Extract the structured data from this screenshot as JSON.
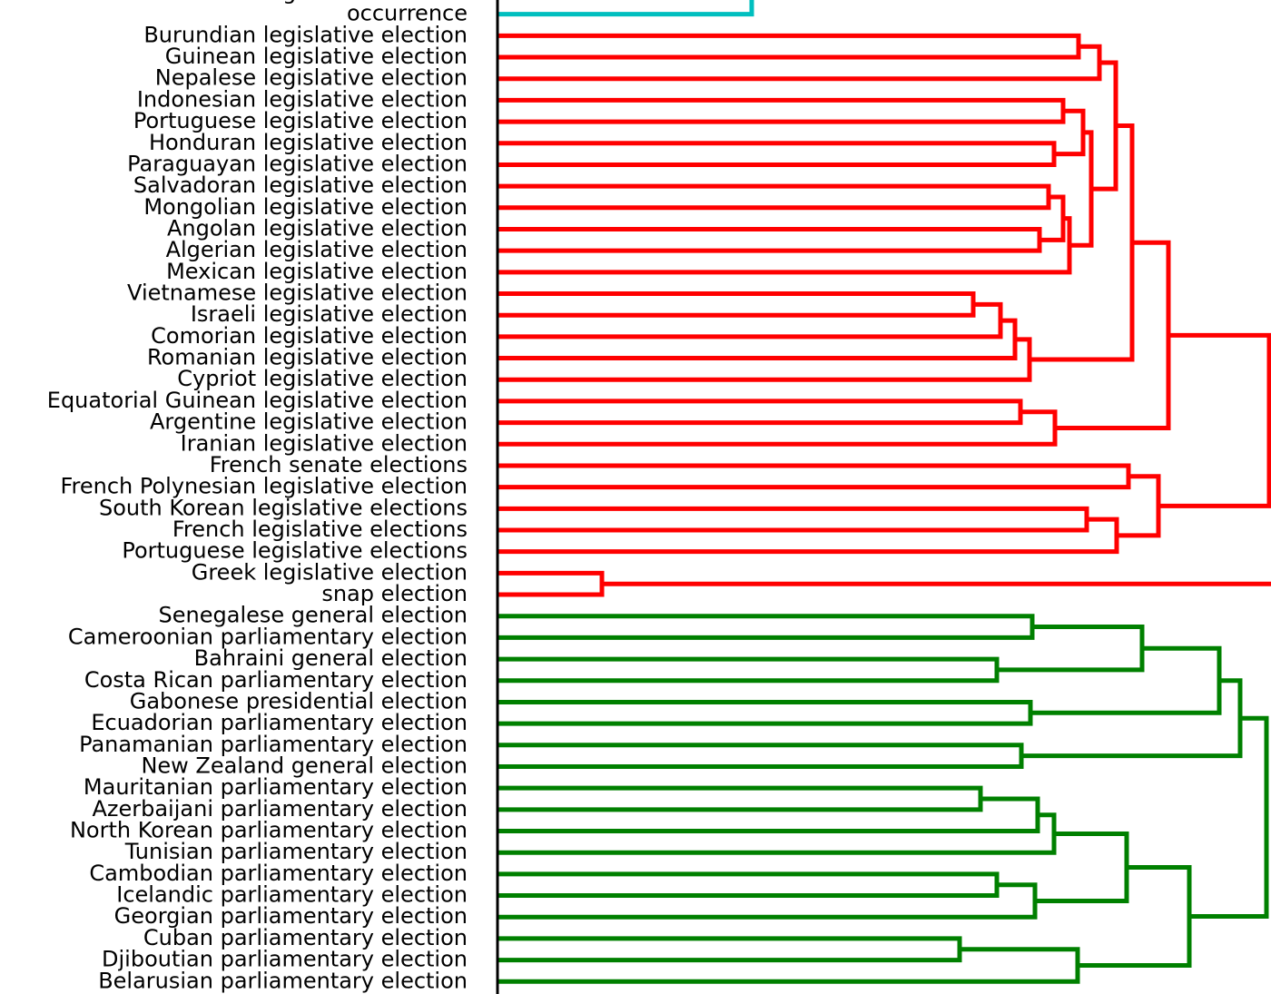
{
  "chart_data": {
    "type": "dendrogram",
    "leaves": [
      "legislative election",
      "occurrence",
      "Burundian legislative election",
      "Guinean legislative election",
      "Nepalese legislative election",
      "Indonesian legislative election",
      "Portuguese legislative election",
      "Honduran legislative election",
      "Paraguayan legislative election",
      "Salvadoran legislative election",
      "Mongolian legislative election",
      "Angolan legislative election",
      "Algerian legislative election",
      "Mexican legislative election",
      "Vietnamese legislative election",
      "Israeli legislative election",
      "Comorian legislative election",
      "Romanian legislative election",
      "Cypriot legislative election",
      "Equatorial Guinean legislative election",
      "Argentine legislative election",
      "Iranian legislative election",
      "French senate elections",
      "French Polynesian legislative election",
      "South Korean legislative elections",
      "French legislative elections",
      "Portuguese legislative elections",
      "Greek legislative election",
      "snap election",
      "Senegalese general election",
      "Cameroonian parliamentary election",
      "Bahraini general election",
      "Costa Rican parliamentary election",
      "Gabonese presidential election",
      "Ecuadorian parliamentary election",
      "Panamanian parliamentary election",
      "New Zealand general election",
      "Mauritanian parliamentary election",
      "Azerbaijani parliamentary election",
      "North Korean parliamentary election",
      "Tunisian parliamentary election",
      "Cambodian parliamentary election",
      "Icelandic parliamentary election",
      "Georgian parliamentary election",
      "Cuban parliamentary election",
      "Djiboutian parliamentary election",
      "Belarusian parliamentary election"
    ],
    "links": [
      {
        "children": [
          0,
          1
        ],
        "height": 2.8,
        "color": "#00bfbf"
      },
      {
        "children": [
          2,
          3
        ],
        "height": 6.4,
        "color": "#ff0000"
      },
      {
        "children": [
          48,
          4
        ],
        "height": 6.63,
        "color": "#ff0000"
      },
      {
        "children": [
          5,
          6
        ],
        "height": 6.23,
        "color": "#ff0000"
      },
      {
        "children": [
          7,
          8
        ],
        "height": 6.13,
        "color": "#ff0000"
      },
      {
        "children": [
          50,
          51
        ],
        "height": 6.45,
        "color": "#ff0000"
      },
      {
        "children": [
          9,
          10
        ],
        "height": 6.07,
        "color": "#ff0000"
      },
      {
        "children": [
          11,
          12
        ],
        "height": 5.97,
        "color": "#ff0000"
      },
      {
        "children": [
          53,
          54
        ],
        "height": 6.23,
        "color": "#ff0000"
      },
      {
        "children": [
          55,
          13
        ],
        "height": 6.3,
        "color": "#ff0000"
      },
      {
        "children": [
          52,
          56
        ],
        "height": 6.54,
        "color": "#ff0000"
      },
      {
        "children": [
          49,
          57
        ],
        "height": 6.81,
        "color": "#ff0000"
      },
      {
        "children": [
          14,
          15
        ],
        "height": 5.24,
        "color": "#ff0000"
      },
      {
        "children": [
          59,
          16
        ],
        "height": 5.54,
        "color": "#ff0000"
      },
      {
        "children": [
          60,
          17
        ],
        "height": 5.7,
        "color": "#ff0000"
      },
      {
        "children": [
          61,
          18
        ],
        "height": 5.86,
        "color": "#ff0000"
      },
      {
        "children": [
          58,
          62
        ],
        "height": 6.99,
        "color": "#ff0000"
      },
      {
        "children": [
          19,
          20
        ],
        "height": 5.76,
        "color": "#ff0000"
      },
      {
        "children": [
          64,
          21
        ],
        "height": 6.14,
        "color": "#ff0000"
      },
      {
        "children": [
          63,
          65
        ],
        "height": 7.39,
        "color": "#ff0000"
      },
      {
        "children": [
          24,
          25
        ],
        "height": 6.49,
        "color": "#ff0000"
      },
      {
        "children": [
          67,
          26
        ],
        "height": 6.82,
        "color": "#ff0000"
      },
      {
        "children": [
          22,
          23
        ],
        "height": 6.95,
        "color": "#ff0000"
      },
      {
        "children": [
          69,
          68
        ],
        "height": 7.28,
        "color": "#ff0000"
      },
      {
        "children": [
          66,
          70
        ],
        "height": 8.5,
        "color": "#ff0000"
      },
      {
        "children": [
          27,
          28
        ],
        "height": 1.15,
        "color": "#ff0000"
      },
      {
        "children": [
          71,
          72
        ],
        "height": 8.7,
        "color": "#ff0000"
      },
      {
        "children": [
          29,
          30
        ],
        "height": 5.89,
        "color": "#008000"
      },
      {
        "children": [
          31,
          32
        ],
        "height": 5.5,
        "color": "#008000"
      },
      {
        "children": [
          74,
          75
        ],
        "height": 7.1,
        "color": "#008000"
      },
      {
        "children": [
          33,
          34
        ],
        "height": 5.87,
        "color": "#008000"
      },
      {
        "children": [
          76,
          77
        ],
        "height": 7.95,
        "color": "#008000"
      },
      {
        "children": [
          35,
          36
        ],
        "height": 5.77,
        "color": "#008000"
      },
      {
        "children": [
          78,
          79
        ],
        "height": 8.18,
        "color": "#008000"
      },
      {
        "children": [
          37,
          38
        ],
        "height": 5.32,
        "color": "#008000"
      },
      {
        "children": [
          81,
          39
        ],
        "height": 5.95,
        "color": "#008000"
      },
      {
        "children": [
          82,
          40
        ],
        "height": 6.13,
        "color": "#008000"
      },
      {
        "children": [
          41,
          42
        ],
        "height": 5.5,
        "color": "#008000"
      },
      {
        "children": [
          84,
          43
        ],
        "height": 5.92,
        "color": "#008000"
      },
      {
        "children": [
          83,
          85
        ],
        "height": 6.93,
        "color": "#008000"
      },
      {
        "children": [
          44,
          45
        ],
        "height": 5.09,
        "color": "#008000"
      },
      {
        "children": [
          87,
          46
        ],
        "height": 6.39,
        "color": "#008000"
      },
      {
        "children": [
          86,
          88
        ],
        "height": 7.62,
        "color": "#008000"
      },
      {
        "children": [
          80,
          89
        ],
        "height": 8.47,
        "color": "#008000"
      }
    ]
  }
}
